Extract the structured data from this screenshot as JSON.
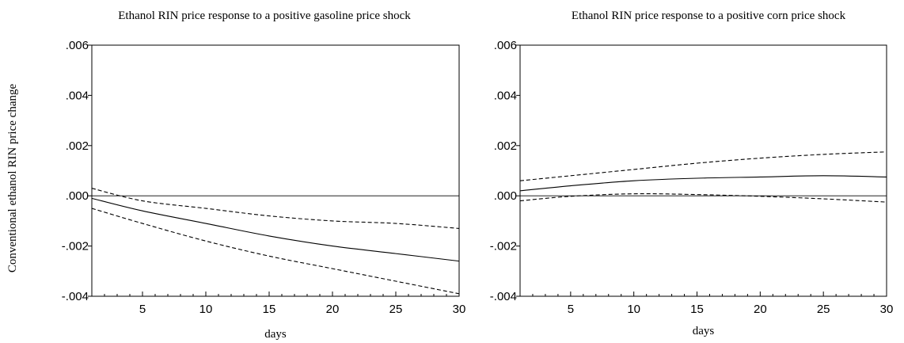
{
  "ylabel": "Conventional ethanol RIN price change",
  "chart_data": [
    {
      "type": "line",
      "title": "Ethanol RIN price response to a positive gasoline price shock",
      "xlabel": "days",
      "ylabel": "Conventional ethanol RIN price change",
      "xlim": [
        1,
        30
      ],
      "ylim": [
        -0.004,
        0.006
      ],
      "x_ticks": [
        5,
        10,
        15,
        20,
        25,
        30
      ],
      "x_tick_labels": [
        "5",
        "10",
        "15",
        "20",
        "25",
        "30"
      ],
      "y_ticks": [
        -0.004,
        -0.002,
        0.0,
        0.002,
        0.004,
        0.006
      ],
      "y_tick_labels": [
        "-.004",
        "-.002",
        ".000",
        ".002",
        ".004",
        ".006"
      ],
      "x": [
        1,
        5,
        10,
        15,
        20,
        25,
        30
      ],
      "series": [
        {
          "style": "solid",
          "values": [
            -0.0001,
            -0.0006,
            -0.0011,
            -0.0016,
            -0.002,
            -0.0023,
            -0.0026
          ]
        },
        {
          "style": "dashed",
          "values": [
            0.0003,
            -0.0002,
            -0.0005,
            -0.0008,
            -0.001,
            -0.0011,
            -0.0013
          ]
        },
        {
          "style": "dashed",
          "values": [
            -0.0005,
            -0.0011,
            -0.0018,
            -0.0024,
            -0.0029,
            -0.0034,
            -0.0039
          ]
        }
      ],
      "zero_line": true,
      "grid": false
    },
    {
      "type": "line",
      "title": "Ethanol RIN price response to a positive corn price shock",
      "xlabel": "days",
      "xlim": [
        1,
        30
      ],
      "ylim": [
        -0.004,
        0.006
      ],
      "x_ticks": [
        5,
        10,
        15,
        20,
        25,
        30
      ],
      "x_tick_labels": [
        "5",
        "10",
        "15",
        "20",
        "25",
        "30"
      ],
      "y_ticks": [
        -0.004,
        -0.002,
        0.0,
        0.002,
        0.004,
        0.006
      ],
      "y_tick_labels": [
        "-.004",
        "-.002",
        ".000",
        ".002",
        ".004",
        ".006"
      ],
      "x": [
        1,
        5,
        10,
        15,
        20,
        25,
        30
      ],
      "series": [
        {
          "style": "solid",
          "values": [
            0.0002,
            0.0004,
            0.0006,
            0.0007,
            0.00075,
            0.0008,
            0.00075
          ]
        },
        {
          "style": "dashed",
          "values": [
            0.0006,
            0.0008,
            0.00105,
            0.0013,
            0.0015,
            0.00165,
            0.00175
          ]
        },
        {
          "style": "dashed",
          "values": [
            -0.0002,
            -2e-05,
            8e-05,
            5e-05,
            -2e-05,
            -0.00012,
            -0.00025
          ]
        }
      ],
      "zero_line": true,
      "grid": false
    }
  ]
}
